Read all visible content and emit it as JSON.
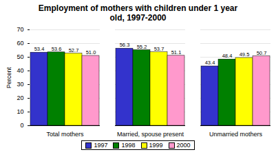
{
  "chart_data": {
    "type": "bar",
    "title": "Employment of mothers with children under 1 year old, 1997-2000",
    "y_label": "Percent",
    "categories": [
      "Total mothers",
      "Married, spouse present",
      "Unmarried mothers"
    ],
    "series": [
      {
        "name": "1997",
        "color": "#3333cc",
        "values": [
          53.4,
          56.3,
          43.4
        ]
      },
      {
        "name": "1998",
        "color": "#008000",
        "values": [
          53.6,
          55.2,
          48.4
        ]
      },
      {
        "name": "1999",
        "color": "#ffff00",
        "values": [
          52.7,
          53.7,
          49.5
        ]
      },
      {
        "name": "2000",
        "color": "#ff99cc",
        "values": [
          51.0,
          51.1,
          50.7
        ],
        "value_labels": [
          "51.0",
          "51.1",
          "50.7"
        ]
      }
    ],
    "ylim": [
      0,
      70
    ],
    "yticks": [
      0,
      10,
      20,
      30,
      40,
      50,
      60,
      70
    ],
    "grid": true,
    "data_labels": true,
    "legend": "bottom"
  }
}
